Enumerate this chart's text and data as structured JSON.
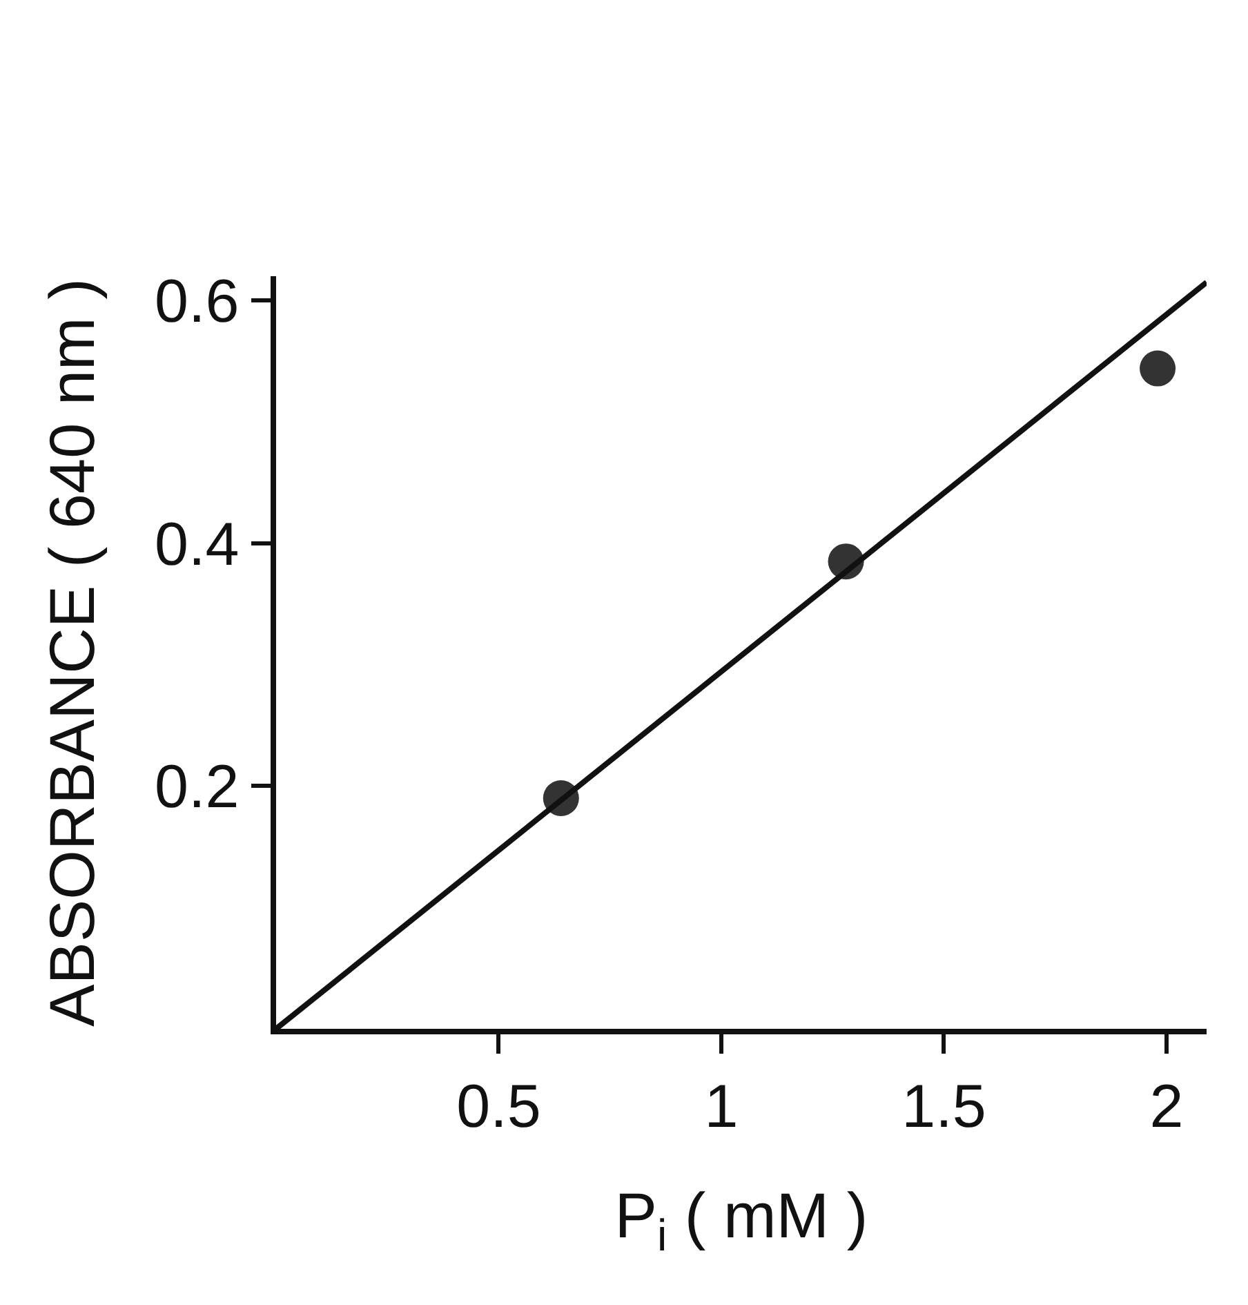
{
  "chart_data": {
    "type": "scatter",
    "xlabel": "P$_{i}$ ( mM )",
    "ylabel": "ABSORBANCE ( 640 nm )",
    "xlim": [
      0,
      2.09
    ],
    "ylim": [
      0,
      0.62
    ],
    "xticks": [
      0.5,
      1,
      1.5,
      2
    ],
    "yticks": [
      0.2,
      0.4,
      0.6
    ],
    "series": [
      {
        "x": [
          0.64,
          1.28,
          1.98
        ],
        "values": [
          0.19,
          0.385,
          0.544
        ],
        "color": "#333333",
        "marker": "circle"
      },
      {
        "type": "line",
        "x": [
          0,
          2.09
        ],
        "values": [
          0,
          0.615
        ],
        "color": "#111111",
        "marker": "none",
        "line_style": "solid"
      }
    ]
  }
}
